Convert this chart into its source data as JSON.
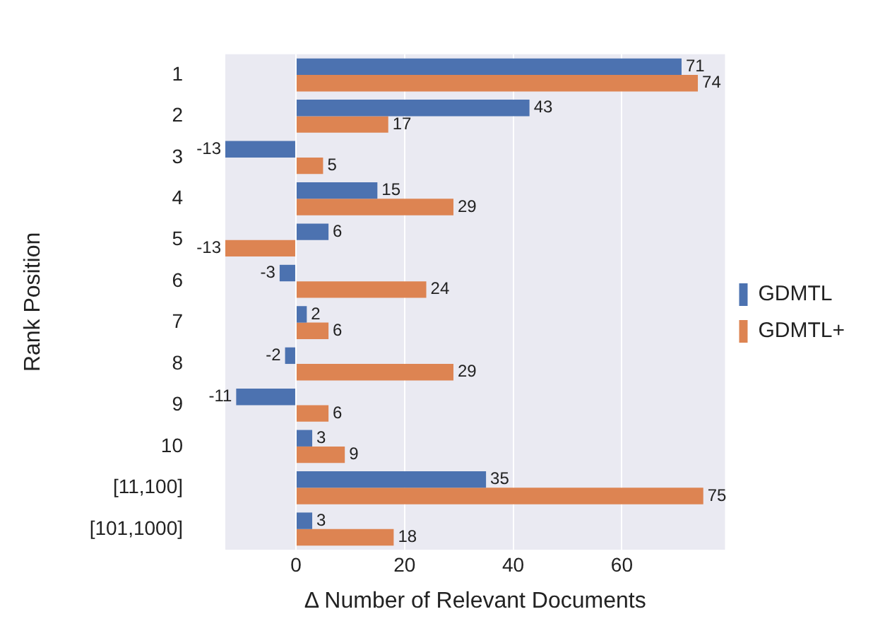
{
  "chart_data": {
    "type": "bar",
    "orientation": "horizontal",
    "xlabel": "Δ Number of Relevant Documents",
    "ylabel": "Rank Position",
    "categories": [
      "1",
      "2",
      "3",
      "4",
      "5",
      "6",
      "7",
      "8",
      "9",
      "10",
      "[11,100]",
      "[101,1000]"
    ],
    "series": [
      {
        "name": "GDMTL",
        "color": "#4c72b0",
        "values": [
          71,
          43,
          -13,
          15,
          6,
          -3,
          2,
          -2,
          -11,
          3,
          35,
          3
        ]
      },
      {
        "name": "GDMTL+",
        "color": "#dd8452",
        "values": [
          74,
          17,
          5,
          29,
          -13,
          24,
          6,
          29,
          6,
          9,
          75,
          18
        ]
      }
    ],
    "xlim": [
      -13,
      79
    ],
    "xticks": [
      0,
      20,
      40,
      60
    ],
    "grid": "x",
    "legend": "right",
    "data_labels": true
  }
}
